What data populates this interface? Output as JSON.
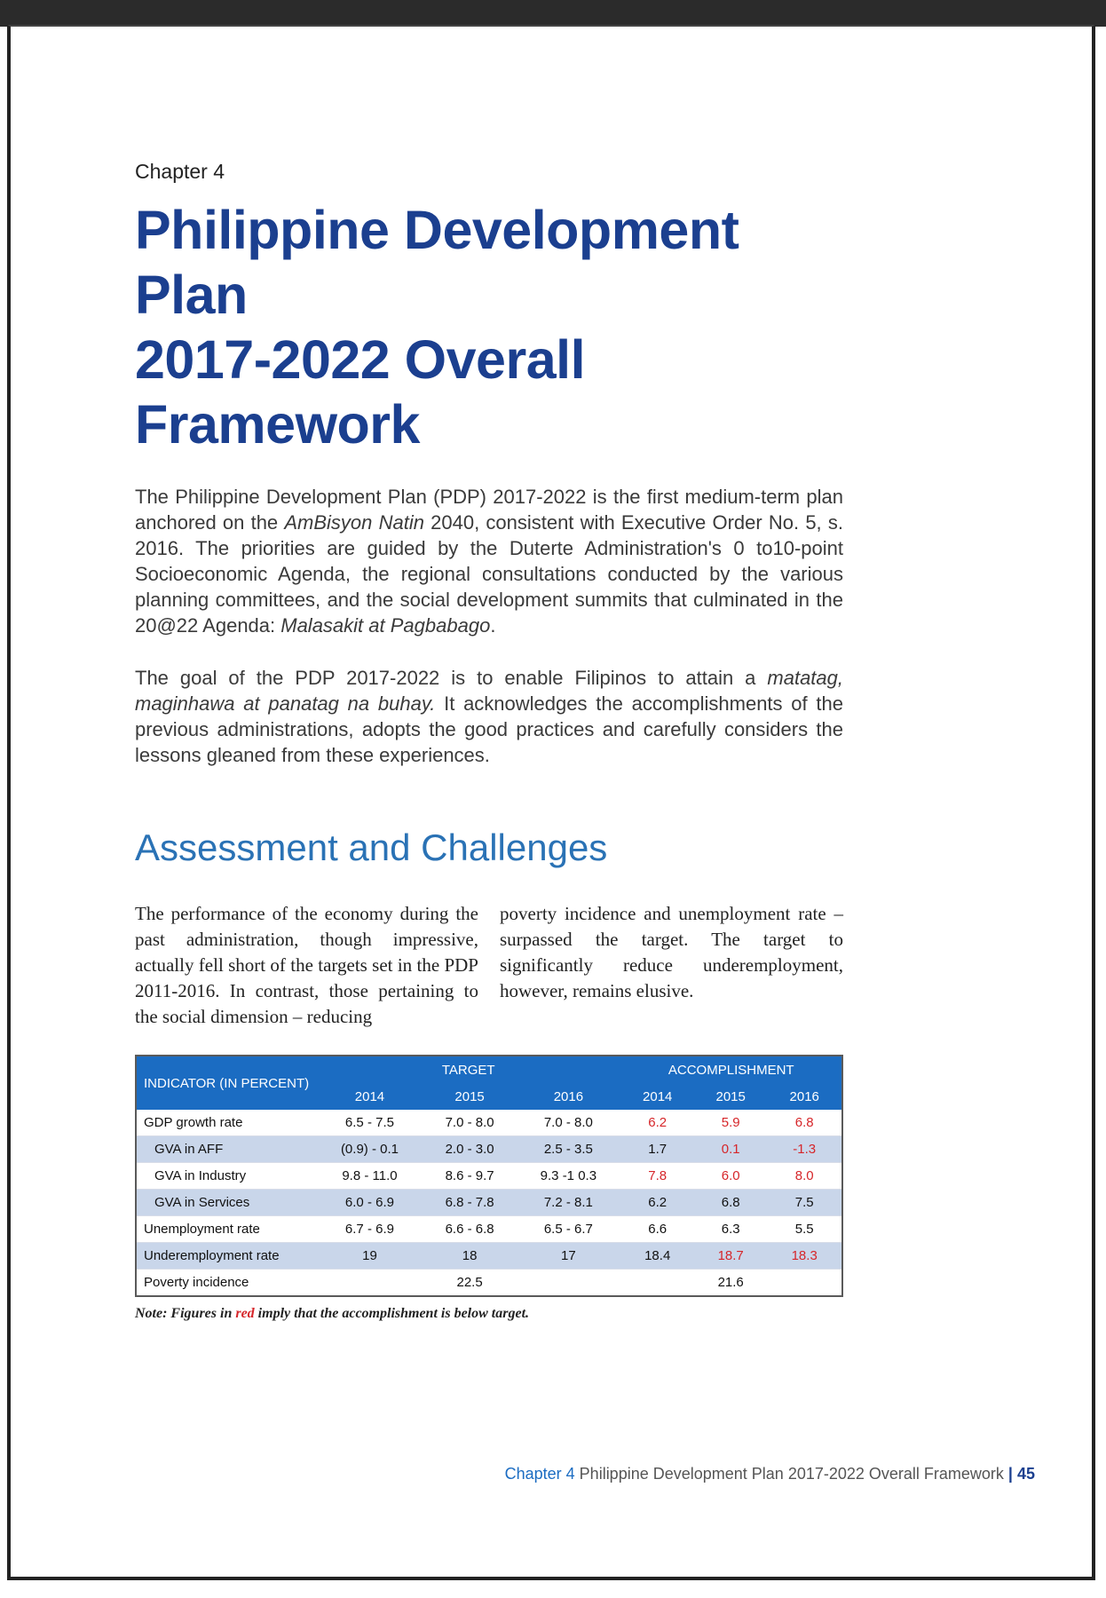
{
  "chapter_label": "Chapter 4",
  "title_line1": "Philippine Development Plan",
  "title_line2": "2017-2022 Overall Framework",
  "intro_para1": {
    "before_italic": "The Philippine Development Plan (PDP) 2017-2022 is the first medium-term plan anchored on the ",
    "italic1": "AmBisyon Natin",
    "middle": " 2040, consistent with Executive Order No. 5, s. 2016.  The priorities are guided by the Duterte Administration's 0 to10-point Socioeconomic Agenda, the regional consultations conducted by the various planning committees, and the social development summits that culminated in the 20@22 Agenda: ",
    "italic2": "Malasakit at Pagbabago",
    "end": "."
  },
  "intro_para2": {
    "before_italic": "The goal of the PDP 2017-2022 is to enable Filipinos to attain a ",
    "italic": "matatag, maginhawa at panatag na buhay.",
    "after": " It acknowledges the accomplishments of the previous administrations, adopts the good practices and carefully considers the lessons gleaned from these experiences."
  },
  "section_heading": "Assessment and Challenges",
  "col_left": "The performance of the economy during the past administration, though impressive, actually fell short of the targets set in the PDP 2011-2016. In contrast, those pertaining to the social dimension – reducing",
  "col_right": "poverty incidence and unemployment rate – surpassed the target. The target to significantly reduce underemployment, however, remains elusive.",
  "table": {
    "indicator_header": "INDICATOR (IN PERCENT)",
    "target_header": "TARGET",
    "accomplishment_header": "ACCOMPLISHMENT",
    "years": [
      "2014",
      "2015",
      "2016",
      "2014",
      "2015",
      "2016"
    ],
    "rows": [
      {
        "label": "GDP growth rate",
        "values": [
          "6.5 - 7.5",
          "7.0 - 8.0",
          "7.0 - 8.0",
          "6.2",
          "5.9",
          "6.8"
        ]
      },
      {
        "label": "GVA in AFF",
        "values": [
          "(0.9) - 0.1",
          "2.0 - 3.0",
          "2.5 - 3.5",
          "1.7",
          "0.1",
          "-1.3"
        ]
      },
      {
        "label": "GVA in Industry",
        "values": [
          "9.8 - 11.0",
          "8.6 - 9.7",
          "9.3 -1 0.3",
          "7.8",
          "6.0",
          "8.0"
        ]
      },
      {
        "label": "GVA in Services",
        "values": [
          "6.0 - 6.9",
          "6.8 - 7.8",
          "7.2 - 8.1",
          "6.2",
          "6.8",
          "7.5"
        ]
      },
      {
        "label": "Unemployment rate",
        "values": [
          "6.7 - 6.9",
          "6.6  - 6.8",
          "6.5 - 6.7",
          "6.6",
          "6.3",
          "5.5"
        ]
      },
      {
        "label": "Underemployment rate",
        "values": [
          "19",
          "18",
          "17",
          "18.4",
          "18.7",
          "18.3"
        ]
      },
      {
        "label": "Poverty incidence",
        "values": [
          "",
          "22.5",
          "",
          "",
          "21.6",
          ""
        ]
      }
    ],
    "note_before": "Note: Figures in ",
    "note_red": "red",
    "note_after": " imply that the accomplishment is below target."
  },
  "footer": {
    "chapter": "Chapter 4",
    "title": " Philippine Development Plan 2017-2022 Overall Framework ",
    "separator": "|",
    "page": " 45"
  },
  "colors": {
    "title_blue": "#1b3f8f",
    "heading_blue": "#2a72b5",
    "table_header": "#1b6cc2",
    "shade": "#c9d6ea",
    "below_target_red": "#d6262a"
  }
}
